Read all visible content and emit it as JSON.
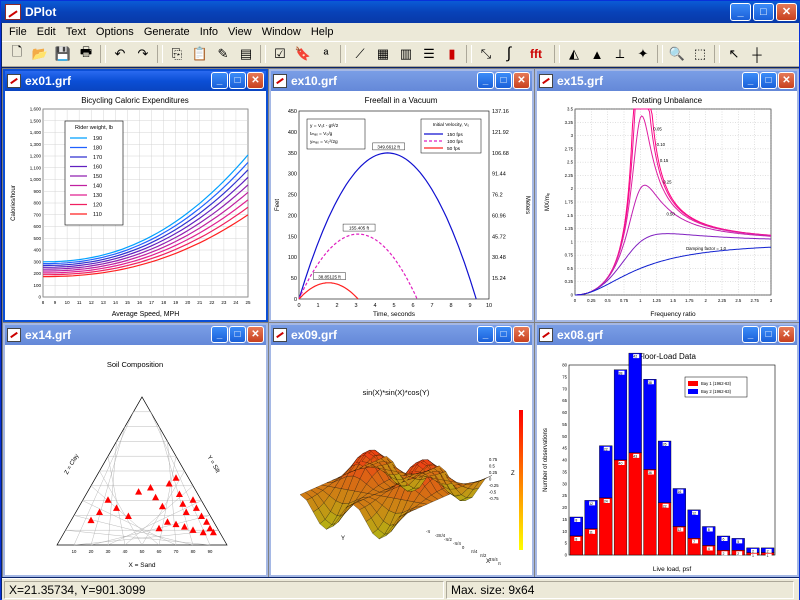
{
  "app": {
    "title": "DPlot"
  },
  "menu": [
    "File",
    "Edit",
    "Text",
    "Options",
    "Generate",
    "Info",
    "View",
    "Window",
    "Help"
  ],
  "toolbar_icons": [
    "new-icon",
    "open-icon",
    "save-icon",
    "print-icon",
    "undo-icon",
    "redo-icon",
    "copy-icon",
    "paste-icon",
    "pencil-icon",
    "edit-data-icon",
    "check-icon",
    "clipboard-icon",
    "text-az-icon",
    "linear-axes-icon",
    "grid-icon",
    "bar-chart-icon",
    "table-icon",
    "colors-icon",
    "line-tool-icon",
    "integral-icon",
    "fft-icon",
    "contour-icon",
    "3d-icon",
    "tangent-icon",
    "marker-icon",
    "zoom-icon",
    "select-icon",
    "help-pointer-icon",
    "crosshair-icon"
  ],
  "windows": [
    {
      "id": "w1",
      "name": "ex01.grf",
      "active": true
    },
    {
      "id": "w2",
      "name": "ex10.grf",
      "active": false
    },
    {
      "id": "w3",
      "name": "ex15.grf",
      "active": false
    },
    {
      "id": "w4",
      "name": "ex14.grf",
      "active": false
    },
    {
      "id": "w5",
      "name": "ex09.grf",
      "active": false
    },
    {
      "id": "w6",
      "name": "ex08.grf",
      "active": false
    }
  ],
  "status": {
    "coords": "X=21.35734, Y=901.3099",
    "maxsize": "Max. size: 9x64"
  },
  "chart_data": [
    {
      "type": "line",
      "title": "Bicycling Caloric Expenditures",
      "xlabel": "Average Speed, MPH",
      "ylabel": "Calories/hour",
      "xlim": [
        8,
        25
      ],
      "ylim": [
        0,
        1600
      ],
      "legend_title": "Rider weight, lb",
      "series": [
        {
          "name": "190",
          "color": "#00a0ff"
        },
        {
          "name": "180",
          "color": "#2060ff"
        },
        {
          "name": "170",
          "color": "#3030d0"
        },
        {
          "name": "160",
          "color": "#6020c0"
        },
        {
          "name": "150",
          "color": "#9020b0"
        },
        {
          "name": "140",
          "color": "#c020a0"
        },
        {
          "name": "130",
          "color": "#e02090"
        },
        {
          "name": "120",
          "color": "#f02060"
        },
        {
          "name": "110",
          "color": "#ff2020"
        }
      ],
      "grid": true
    },
    {
      "type": "line",
      "title": "Freefall in a Vacuum",
      "xlabel": "Time, seconds",
      "ylabel": "Feet",
      "ylabel_right": "Meters",
      "xlim": [
        0,
        10
      ],
      "ylim": [
        0,
        450
      ],
      "right_ticks": [
        "137.16",
        "121.92",
        "106.68",
        "91.44",
        "76.2",
        "60.96",
        "45.72",
        "30.48",
        "15.24"
      ],
      "legend_title": "Initial Velocity, V₀",
      "series": [
        {
          "name": "150 fps",
          "v0": 150,
          "color": "#1010d0",
          "peak_label": "349.6612 ft"
        },
        {
          "name": "100 fps",
          "v0": 100,
          "color": "#e020c0",
          "peak_label": "155.405 ft"
        },
        {
          "name": "50 fps",
          "v0": 50,
          "color": "#ff2020",
          "peak_label": "38.85125 ft"
        }
      ],
      "equations": [
        "y = V₀t - gt²/2",
        "tₘₐₓ = V₀/g",
        "yₘₐₓ = V₀²/2g"
      ]
    },
    {
      "type": "line",
      "title": "Rotating Unbalance",
      "xlabel": "Frequency ratio",
      "ylabel": "MX/mₑ",
      "xlim": [
        0,
        3
      ],
      "ylim": [
        0,
        3.5
      ],
      "damping": [
        0.05,
        0.1,
        0.15,
        0.25,
        0.5,
        1.0
      ],
      "damping_labels": [
        "0.05",
        "0.10",
        "0.15",
        "0.25",
        "0.50",
        "Damping factor = 1.0"
      ]
    },
    {
      "type": "scatter",
      "title": "Soil Composition",
      "labels": {
        "bottom": "X = Sand",
        "left": "Z = Clay",
        "right": "Y = Silt"
      },
      "points": [
        [
          20,
          30
        ],
        [
          25,
          40
        ],
        [
          30,
          55
        ],
        [
          35,
          45
        ],
        [
          42,
          35
        ],
        [
          48,
          65
        ],
        [
          55,
          70
        ],
        [
          58,
          58
        ],
        [
          62,
          47
        ],
        [
          66,
          75
        ],
        [
          70,
          82
        ],
        [
          72,
          62
        ],
        [
          74,
          50
        ],
        [
          76,
          40
        ],
        [
          80,
          55
        ],
        [
          82,
          45
        ],
        [
          85,
          35
        ],
        [
          88,
          28
        ],
        [
          90,
          20
        ],
        [
          92,
          15
        ],
        [
          86,
          15
        ],
        [
          80,
          18
        ],
        [
          75,
          22
        ],
        [
          70,
          25
        ],
        [
          65,
          28
        ],
        [
          60,
          20
        ]
      ]
    },
    {
      "type": "surface",
      "title": "sin(X)*sin(X)*cos(Y)",
      "x_ticks": [
        "-π",
        "-3π/4",
        "-π/2",
        "-π/4",
        "0",
        "π/4",
        "π/2",
        "3π/4",
        "π"
      ],
      "z_ticks": [
        "0.75",
        "0.5",
        "0.25",
        "0",
        "-0.25",
        "-0.5",
        "-0.75"
      ],
      "axis_labels": {
        "x": "X",
        "y": "Y",
        "z": "Z"
      }
    },
    {
      "type": "bar",
      "title": "Floor-Load Data",
      "xlabel": "Live load, psf",
      "ylabel": "Number of observations",
      "categories": [
        " ",
        " ",
        " ",
        " ",
        " ",
        " ",
        " ",
        " ",
        " ",
        " ",
        " ",
        " ",
        " ",
        " "
      ],
      "series": [
        {
          "name": "Bay 1 (1962-63)",
          "color": "#ff0000",
          "values": [
            8,
            11,
            24,
            40,
            43,
            36,
            22,
            12,
            7,
            4,
            2,
            2,
            1,
            1
          ]
        },
        {
          "name": "Bay 2 (1962-63)",
          "color": "#0000ff",
          "values": [
            8,
            12,
            22,
            38,
            42,
            38,
            26,
            16,
            12,
            8,
            6,
            5,
            2,
            2
          ]
        }
      ],
      "ylim": [
        0,
        80
      ]
    }
  ]
}
